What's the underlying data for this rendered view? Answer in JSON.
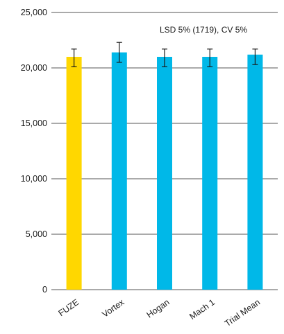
{
  "chart_data": {
    "type": "bar",
    "categories": [
      "FUZE",
      "Vortex",
      "Hogan",
      "Mach 1",
      "Trial Mean"
    ],
    "values": [
      21000,
      21400,
      21000,
      21000,
      21200
    ],
    "error_bars": [
      {
        "low": 20100,
        "high": 21700
      },
      {
        "low": 20500,
        "high": 22300
      },
      {
        "low": 20100,
        "high": 21700
      },
      {
        "low": 20100,
        "high": 21700
      },
      {
        "low": 20300,
        "high": 21700
      }
    ],
    "bar_colors": [
      "#FFD700",
      "#00B8E8",
      "#00B8E8",
      "#00B8E8",
      "#00B8E8"
    ],
    "ylim": [
      0,
      25000
    ],
    "yticks": [
      0,
      5000,
      10000,
      15000,
      20000,
      25000
    ],
    "ytick_labels": [
      "0",
      "5,000",
      "10,000",
      "15,000",
      "20,000",
      "25,000"
    ],
    "grid": true,
    "annotation": "LSD 5% (1719), CV 5%",
    "title": "",
    "xlabel": "",
    "ylabel": ""
  }
}
